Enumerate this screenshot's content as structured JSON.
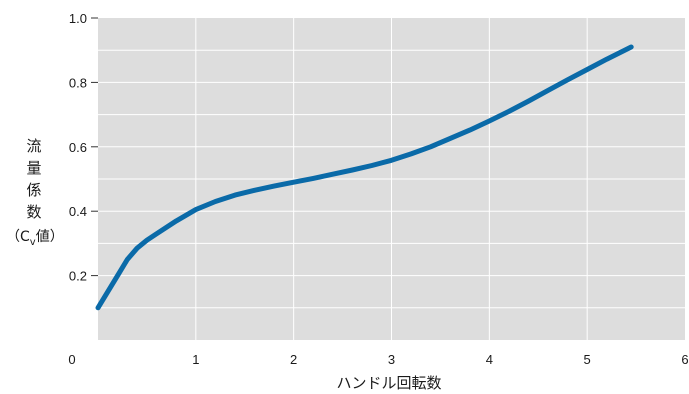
{
  "chart_data": {
    "type": "line",
    "xlabel": "ハンドル回転数",
    "ylabel_chars": [
      "流",
      "量",
      "係",
      "数"
    ],
    "ylabel_unit": {
      "open": "（C",
      "sub": "v",
      "close": "値）"
    },
    "origin_label": "0",
    "xlim": [
      0,
      6
    ],
    "ylim": [
      0,
      1.0
    ],
    "x_ticks": [
      1,
      2,
      3,
      4,
      5,
      6
    ],
    "x_tick_labels": [
      "1",
      "2",
      "3",
      "4",
      "5",
      "6"
    ],
    "y_ticks": [
      0.2,
      0.4,
      0.6,
      0.8,
      1.0
    ],
    "y_tick_labels": [
      "0.2",
      "0.4",
      "0.6",
      "0.8",
      "1.0"
    ],
    "grid": true,
    "colors": {
      "plot_bg": "#dddddd",
      "grid": "#ffffff",
      "line": "#0a6aa8"
    },
    "series": [
      {
        "x": [
          0,
          0.1,
          0.2,
          0.3,
          0.4,
          0.5,
          0.6,
          0.8,
          1.0,
          1.2,
          1.4,
          1.6,
          1.8,
          2.0,
          2.2,
          2.4,
          2.6,
          2.8,
          3.0,
          3.2,
          3.4,
          3.6,
          3.8,
          4.0,
          4.2,
          4.4,
          4.6,
          4.8,
          5.0,
          5.2,
          5.45
        ],
        "y": [
          0.1,
          0.15,
          0.2,
          0.25,
          0.285,
          0.31,
          0.33,
          0.37,
          0.405,
          0.43,
          0.45,
          0.465,
          0.478,
          0.49,
          0.502,
          0.515,
          0.528,
          0.542,
          0.558,
          0.578,
          0.6,
          0.626,
          0.652,
          0.68,
          0.71,
          0.742,
          0.775,
          0.808,
          0.84,
          0.872,
          0.91
        ]
      }
    ]
  }
}
